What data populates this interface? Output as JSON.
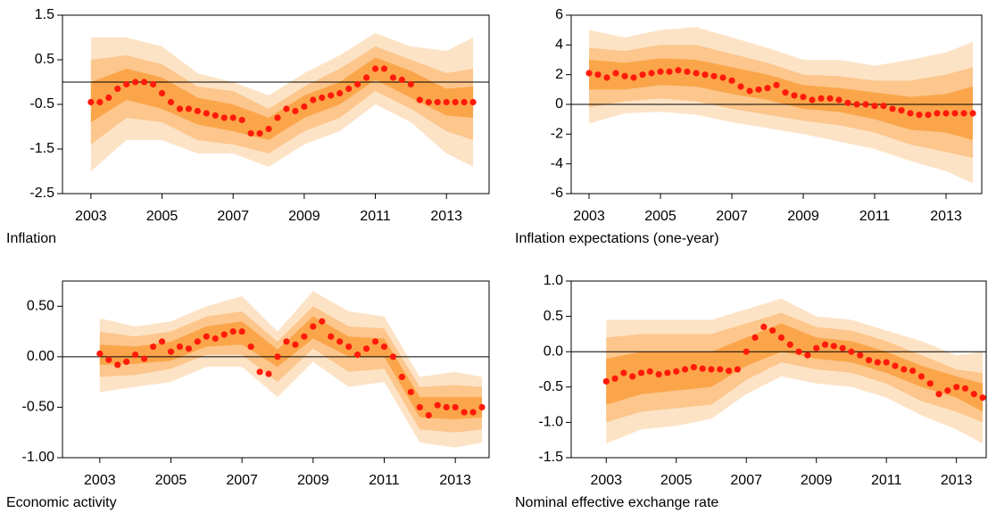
{
  "chart_data": [
    {
      "type": "fan",
      "title": "Inflation",
      "color": "#ff1a0a",
      "x": [
        2003,
        2003.25,
        2003.5,
        2003.75,
        2004,
        2004.25,
        2004.5,
        2004.75,
        2005,
        2005.25,
        2005.5,
        2005.75,
        2006,
        2006.25,
        2006.5,
        2006.75,
        2007,
        2007.25,
        2007.5,
        2007.75,
        2008,
        2008.25,
        2008.5,
        2008.75,
        2009,
        2009.25,
        2009.5,
        2009.75,
        2010,
        2010.25,
        2010.5,
        2010.75,
        2011,
        2011.25,
        2011.5,
        2011.75,
        2012,
        2012.25,
        2012.5,
        2012.75,
        2013,
        2013.25,
        2013.5,
        2013.75
      ],
      "values": [
        -0.45,
        -0.45,
        -0.35,
        -0.15,
        -0.05,
        0,
        0,
        -0.05,
        -0.25,
        -0.45,
        -0.6,
        -0.6,
        -0.65,
        -0.7,
        -0.75,
        -0.8,
        -0.8,
        -0.85,
        -1.15,
        -1.15,
        -1.05,
        -0.8,
        -0.6,
        -0.65,
        -0.55,
        -0.4,
        -0.35,
        -0.3,
        -0.25,
        -0.15,
        -0.05,
        0.1,
        0.3,
        0.3,
        0.1,
        0.05,
        -0.05,
        -0.4,
        -0.45,
        -0.45,
        -0.45,
        -0.45,
        -0.45,
        -0.45
      ],
      "band_x": [
        2003,
        2004,
        2005,
        2006,
        2007,
        2008,
        2009,
        2010,
        2011,
        2012,
        2013,
        2013.75
      ],
      "bands": [
        {
          "color": "#fde3c6",
          "lower": [
            -2.0,
            -1.3,
            -1.3,
            -1.6,
            -1.6,
            -1.9,
            -1.4,
            -1.1,
            -0.5,
            -0.9,
            -1.6,
            -1.9
          ],
          "upper": [
            1.0,
            1.0,
            0.8,
            0.2,
            0.0,
            -0.3,
            0.2,
            0.6,
            1.1,
            0.8,
            0.7,
            1.0
          ]
        },
        {
          "color": "#fcc68c",
          "lower": [
            -1.4,
            -0.8,
            -0.9,
            -1.3,
            -1.4,
            -1.6,
            -1.1,
            -0.8,
            -0.2,
            -0.6,
            -1.1,
            -1.3
          ],
          "upper": [
            0.5,
            0.6,
            0.4,
            -0.1,
            -0.2,
            -0.6,
            -0.1,
            0.3,
            0.8,
            0.5,
            0.2,
            0.3
          ]
        },
        {
          "color": "#fba54a",
          "lower": [
            -0.9,
            -0.4,
            -0.6,
            -0.95,
            -1.1,
            -1.3,
            -0.8,
            -0.5,
            0.05,
            -0.35,
            -0.75,
            -0.8
          ],
          "upper": [
            0.0,
            0.3,
            0.1,
            -0.35,
            -0.5,
            -0.8,
            -0.3,
            0.0,
            0.55,
            0.25,
            -0.15,
            -0.1
          ]
        }
      ],
      "hline": 0,
      "xlim": [
        2002.2,
        2014.2
      ],
      "xticks": [
        2003,
        2005,
        2007,
        2009,
        2011,
        2013
      ],
      "ylim": [
        -2.5,
        1.5
      ],
      "yticks": [
        -2.5,
        -1.5,
        -0.5,
        0.5,
        1.5
      ]
    },
    {
      "type": "fan",
      "title": "Inflation expectations (one-year)",
      "color": "#ff1a0a",
      "x": [
        2003,
        2003.25,
        2003.5,
        2003.75,
        2004,
        2004.25,
        2004.5,
        2004.75,
        2005,
        2005.25,
        2005.5,
        2005.75,
        2006,
        2006.25,
        2006.5,
        2006.75,
        2007,
        2007.25,
        2007.5,
        2007.75,
        2008,
        2008.25,
        2008.5,
        2008.75,
        2009,
        2009.25,
        2009.5,
        2009.75,
        2010,
        2010.25,
        2010.5,
        2010.75,
        2011,
        2011.25,
        2011.5,
        2011.75,
        2012,
        2012.25,
        2012.5,
        2012.75,
        2013,
        2013.25,
        2013.5,
        2013.75
      ],
      "values": [
        2.1,
        2.0,
        1.8,
        2.1,
        1.9,
        1.8,
        2.0,
        2.1,
        2.2,
        2.2,
        2.3,
        2.2,
        2.1,
        2.0,
        1.9,
        1.8,
        1.6,
        1.2,
        0.9,
        1.0,
        1.1,
        1.3,
        0.8,
        0.6,
        0.5,
        0.3,
        0.4,
        0.4,
        0.3,
        0.1,
        0.0,
        0.0,
        -0.1,
        -0.1,
        -0.3,
        -0.4,
        -0.6,
        -0.7,
        -0.7,
        -0.6,
        -0.6,
        -0.6,
        -0.6,
        -0.6
      ],
      "band_x": [
        2003,
        2004,
        2005,
        2006,
        2007,
        2008,
        2009,
        2010,
        2011,
        2012,
        2013,
        2013.75
      ],
      "bands": [
        {
          "color": "#fde3c6",
          "lower": [
            -1.3,
            -0.6,
            -0.5,
            -0.7,
            -1.2,
            -1.6,
            -2.0,
            -2.5,
            -3.0,
            -3.8,
            -4.5,
            -5.3
          ],
          "upper": [
            5.0,
            4.5,
            5.0,
            5.2,
            4.5,
            3.8,
            3.0,
            3.0,
            2.6,
            3.0,
            3.5,
            4.2
          ]
        },
        {
          "color": "#fcc68c",
          "lower": [
            -0.2,
            0.2,
            0.4,
            0.2,
            -0.3,
            -0.7,
            -1.1,
            -1.4,
            -1.9,
            -2.7,
            -3.2,
            -3.6
          ],
          "upper": [
            3.8,
            3.6,
            4.0,
            4.0,
            3.4,
            2.8,
            2.0,
            1.9,
            1.6,
            1.6,
            2.0,
            2.5
          ]
        },
        {
          "color": "#fba54a",
          "lower": [
            1.0,
            1.0,
            1.3,
            1.2,
            0.7,
            0.3,
            -0.3,
            -0.5,
            -1.0,
            -1.7,
            -1.9,
            -2.4
          ],
          "upper": [
            3.0,
            2.8,
            3.1,
            3.0,
            2.5,
            2.0,
            1.3,
            1.1,
            0.8,
            0.5,
            0.7,
            1.2
          ]
        }
      ],
      "hline": 0,
      "xlim": [
        2002.5,
        2014.0
      ],
      "xticks": [
        2003,
        2005,
        2007,
        2009,
        2011,
        2013
      ],
      "ylim": [
        -6,
        6
      ],
      "yticks": [
        -6,
        -4,
        -2,
        0,
        2,
        4,
        6
      ]
    },
    {
      "type": "fan",
      "title": "Economic activity",
      "color": "#ff1a0a",
      "x": [
        2003,
        2003.25,
        2003.5,
        2003.75,
        2004,
        2004.25,
        2004.5,
        2004.75,
        2005,
        2005.25,
        2005.5,
        2005.75,
        2006,
        2006.25,
        2006.5,
        2006.75,
        2007,
        2007.25,
        2007.5,
        2007.75,
        2008,
        2008.25,
        2008.5,
        2008.75,
        2009,
        2009.25,
        2009.5,
        2009.75,
        2010,
        2010.25,
        2010.5,
        2010.75,
        2011,
        2011.25,
        2011.5,
        2011.75,
        2012,
        2012.25,
        2012.5,
        2012.75,
        2013,
        2013.25,
        2013.5,
        2013.75
      ],
      "values": [
        0.03,
        -0.03,
        -0.08,
        -0.05,
        0.02,
        -0.02,
        0.1,
        0.15,
        0.05,
        0.1,
        0.08,
        0.15,
        0.2,
        0.18,
        0.22,
        0.25,
        0.25,
        0.1,
        -0.15,
        -0.17,
        0.0,
        0.15,
        0.12,
        0.2,
        0.3,
        0.35,
        0.2,
        0.15,
        0.1,
        0.02,
        0.08,
        0.15,
        0.1,
        0.0,
        -0.2,
        -0.35,
        -0.5,
        -0.58,
        -0.48,
        -0.5,
        -0.5,
        -0.55,
        -0.55,
        -0.5
      ],
      "band_x": [
        2003,
        2004,
        2005,
        2006,
        2007,
        2008,
        2009,
        2010,
        2011,
        2012,
        2013,
        2013.75
      ],
      "bands": [
        {
          "color": "#fde3c6",
          "lower": [
            -0.35,
            -0.3,
            -0.25,
            -0.1,
            -0.1,
            -0.4,
            -0.05,
            -0.3,
            -0.25,
            -0.85,
            -0.9,
            -0.85
          ],
          "upper": [
            0.38,
            0.3,
            0.35,
            0.5,
            0.6,
            0.25,
            0.65,
            0.45,
            0.4,
            -0.2,
            -0.15,
            -0.2
          ]
        },
        {
          "color": "#fcc68c",
          "lower": [
            -0.2,
            -0.18,
            -0.12,
            0.02,
            0.02,
            -0.25,
            0.08,
            -0.15,
            -0.12,
            -0.72,
            -0.75,
            -0.72
          ],
          "upper": [
            0.25,
            0.2,
            0.25,
            0.4,
            0.45,
            0.15,
            0.5,
            0.3,
            0.28,
            -0.3,
            -0.28,
            -0.3
          ]
        },
        {
          "color": "#fba54a",
          "lower": [
            -0.08,
            -0.07,
            -0.04,
            0.1,
            0.12,
            -0.1,
            0.18,
            0.0,
            0.0,
            -0.6,
            -0.62,
            -0.6
          ],
          "upper": [
            0.12,
            0.1,
            0.15,
            0.3,
            0.35,
            0.07,
            0.4,
            0.2,
            0.18,
            -0.4,
            -0.4,
            -0.4
          ]
        }
      ],
      "hline": 0,
      "xlim": [
        2001.95,
        2013.95
      ],
      "xticks": [
        2003,
        2005,
        2007,
        2009,
        2011,
        2013
      ],
      "ylim": [
        -1,
        0.75
      ],
      "yticks": [
        {
          "value": -1,
          "label": "-1.00"
        },
        {
          "value": -0.5,
          "label": "-0.50"
        },
        {
          "value": 0,
          "label": "0.00"
        },
        {
          "value": 0.5,
          "label": "0.50"
        }
      ]
    },
    {
      "type": "fan",
      "title": "Nominal effective exchange rate",
      "color": "#ff1a0a",
      "x": [
        2003,
        2003.25,
        2003.5,
        2003.75,
        2004,
        2004.25,
        2004.5,
        2004.75,
        2005,
        2005.25,
        2005.5,
        2005.75,
        2006,
        2006.25,
        2006.5,
        2006.75,
        2007,
        2007.25,
        2007.5,
        2007.75,
        2008,
        2008.25,
        2008.5,
        2008.75,
        2009,
        2009.25,
        2009.5,
        2009.75,
        2010,
        2010.25,
        2010.5,
        2010.75,
        2011,
        2011.25,
        2011.5,
        2011.75,
        2012,
        2012.25,
        2012.5,
        2012.75,
        2013,
        2013.25,
        2013.5,
        2013.75
      ],
      "values": [
        -0.42,
        -0.38,
        -0.3,
        -0.35,
        -0.3,
        -0.28,
        -0.32,
        -0.3,
        -0.28,
        -0.25,
        -0.22,
        -0.24,
        -0.25,
        -0.25,
        -0.27,
        -0.25,
        0.0,
        0.2,
        0.35,
        0.3,
        0.2,
        0.1,
        0.0,
        -0.05,
        0.05,
        0.1,
        0.08,
        0.05,
        0.0,
        -0.05,
        -0.12,
        -0.15,
        -0.15,
        -0.2,
        -0.25,
        -0.27,
        -0.35,
        -0.45,
        -0.6,
        -0.55,
        -0.5,
        -0.52,
        -0.6,
        -0.65
      ],
      "band_x": [
        2003,
        2004,
        2005,
        2006,
        2007,
        2008,
        2009,
        2010,
        2011,
        2012,
        2013,
        2013.75
      ],
      "bands": [
        {
          "color": "#fde3c6",
          "lower": [
            -1.3,
            -1.1,
            -1.05,
            -0.95,
            -0.6,
            -0.35,
            -0.45,
            -0.5,
            -0.65,
            -0.9,
            -1.1,
            -1.3
          ],
          "upper": [
            0.45,
            0.45,
            0.45,
            0.45,
            0.6,
            0.75,
            0.5,
            0.45,
            0.3,
            0.15,
            -0.05,
            0.0
          ]
        },
        {
          "color": "#fcc68c",
          "lower": [
            -1.0,
            -0.85,
            -0.8,
            -0.75,
            -0.4,
            -0.15,
            -0.25,
            -0.3,
            -0.45,
            -0.7,
            -0.85,
            -1.0
          ],
          "upper": [
            0.2,
            0.25,
            0.25,
            0.25,
            0.4,
            0.55,
            0.35,
            0.3,
            0.15,
            -0.05,
            -0.25,
            -0.3
          ]
        },
        {
          "color": "#fba54a",
          "lower": [
            -0.75,
            -0.6,
            -0.55,
            -0.5,
            -0.2,
            0.0,
            -0.1,
            -0.15,
            -0.3,
            -0.5,
            -0.65,
            -0.85
          ],
          "upper": [
            -0.1,
            0.0,
            0.0,
            0.0,
            0.2,
            0.4,
            0.2,
            0.15,
            0.0,
            -0.2,
            -0.35,
            -0.45
          ]
        }
      ],
      "hline": 0,
      "xlim": [
        2002.0,
        2013.85
      ],
      "xticks": [
        2003,
        2005,
        2007,
        2009,
        2011,
        2013
      ],
      "ylim": [
        -1.5,
        1.0
      ],
      "yticks": [
        -1.5,
        {
          "value": -1,
          "label": "-1.0"
        },
        -0.5,
        {
          "value": 0,
          "label": "0.0"
        },
        0.5,
        {
          "value": 1,
          "label": "1.0"
        }
      ]
    }
  ]
}
